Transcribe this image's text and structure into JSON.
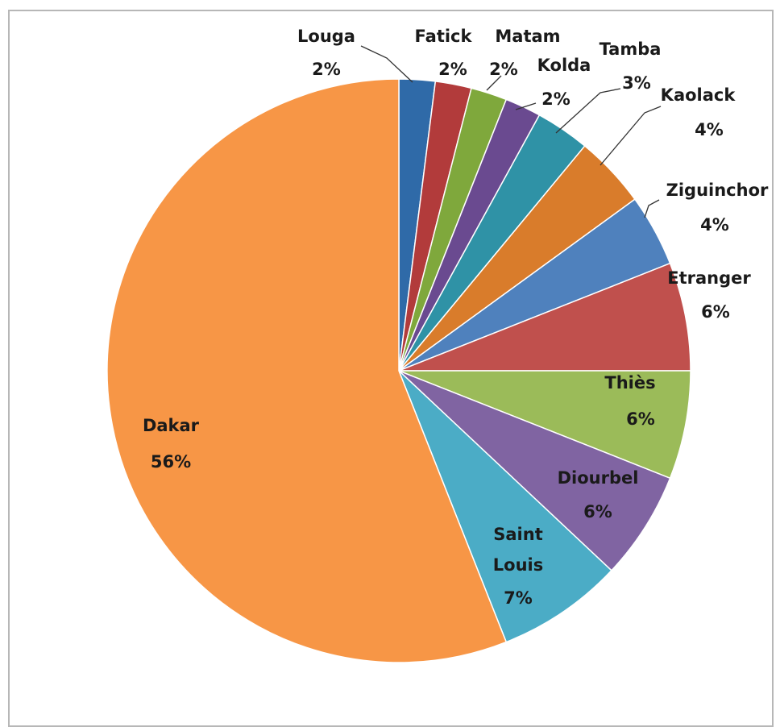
{
  "chart_data": {
    "type": "pie",
    "title": "",
    "slices": [
      {
        "label": "Louga",
        "value": 2,
        "pct_label": "2%",
        "color": "#2f6aa8"
      },
      {
        "label": "Fatick",
        "value": 2,
        "pct_label": "2%",
        "color": "#b23b3b"
      },
      {
        "label": "Matam",
        "value": 2,
        "pct_label": "2%",
        "color": "#7fa83c"
      },
      {
        "label": "Kolda",
        "value": 2,
        "pct_label": "2%",
        "color": "#6a4a90"
      },
      {
        "label": "Tamba",
        "value": 3,
        "pct_label": "3%",
        "color": "#2f92a6"
      },
      {
        "label": "Kaolack",
        "value": 4,
        "pct_label": "4%",
        "color": "#d97c2b"
      },
      {
        "label": "Ziguinchor",
        "value": 4,
        "pct_label": "4%",
        "color": "#4f81bd"
      },
      {
        "label": "Etranger",
        "value": 6,
        "pct_label": "6%",
        "color": "#c0504d"
      },
      {
        "label": "Thiès",
        "value": 6,
        "pct_label": "6%",
        "color": "#9bbb59"
      },
      {
        "label": "Diourbel",
        "value": 6,
        "pct_label": "6%",
        "color": "#8064a2"
      },
      {
        "label": "Saint Louis",
        "value": 7,
        "pct_label": "7%",
        "color": "#4bacc6"
      },
      {
        "label": "Dakar",
        "value": 56,
        "pct_label": "56%",
        "color": "#f79646"
      }
    ],
    "start_angle_deg": 0,
    "direction": "clockwise",
    "legend": "none"
  }
}
